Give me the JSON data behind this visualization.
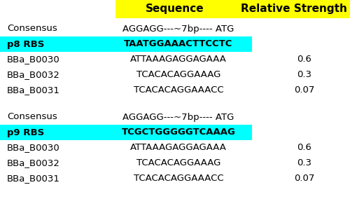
{
  "header": [
    "Sequence",
    "Relative Strength"
  ],
  "header_bg": "#FFFF00",
  "header_fontsize": 11,
  "header_fontweight": "bold",
  "rows_group1": [
    {
      "label": "Consensus",
      "sequence": "AGGAGG---~7bp---- ATG",
      "strength": "",
      "highlight": false
    },
    {
      "label": "p8 RBS",
      "sequence": "TAATGGAAACTTCCTC",
      "strength": "",
      "highlight": true
    },
    {
      "label": "BBa_B0030",
      "sequence": "ATTAAAGAGGAGAAA",
      "strength": "0.6",
      "highlight": false
    },
    {
      "label": "BBa_B0032",
      "sequence": "TCACACAGGAAAG",
      "strength": "0.3",
      "highlight": false
    },
    {
      "label": "BBa_B0031",
      "sequence": "TCACACAGGAAACC",
      "strength": "0.07",
      "highlight": false
    }
  ],
  "rows_group2": [
    {
      "label": "Consensus",
      "sequence": "AGGAGG---~7bp---- ATG",
      "strength": "",
      "highlight": false
    },
    {
      "label": "p9 RBS",
      "sequence": "TCGCTGGGGGTCAAAG",
      "strength": "",
      "highlight": true
    },
    {
      "label": "BBa_B0030",
      "sequence": "ATTAAAGAGGAGAAA",
      "strength": "0.6",
      "highlight": false
    },
    {
      "label": "BBa_B0032",
      "sequence": "TCACACAGGAAAG",
      "strength": "0.3",
      "highlight": false
    },
    {
      "label": "BBa_B0031",
      "sequence": "TCACACAGGAAACC",
      "strength": "0.07",
      "highlight": false
    }
  ],
  "highlight_color": "#00FFFF",
  "bg_color": "#FFFFFF",
  "text_color": "#000000",
  "label_fontsize": 9.5,
  "seq_fontsize": 9.5,
  "strength_fontsize": 9.5
}
